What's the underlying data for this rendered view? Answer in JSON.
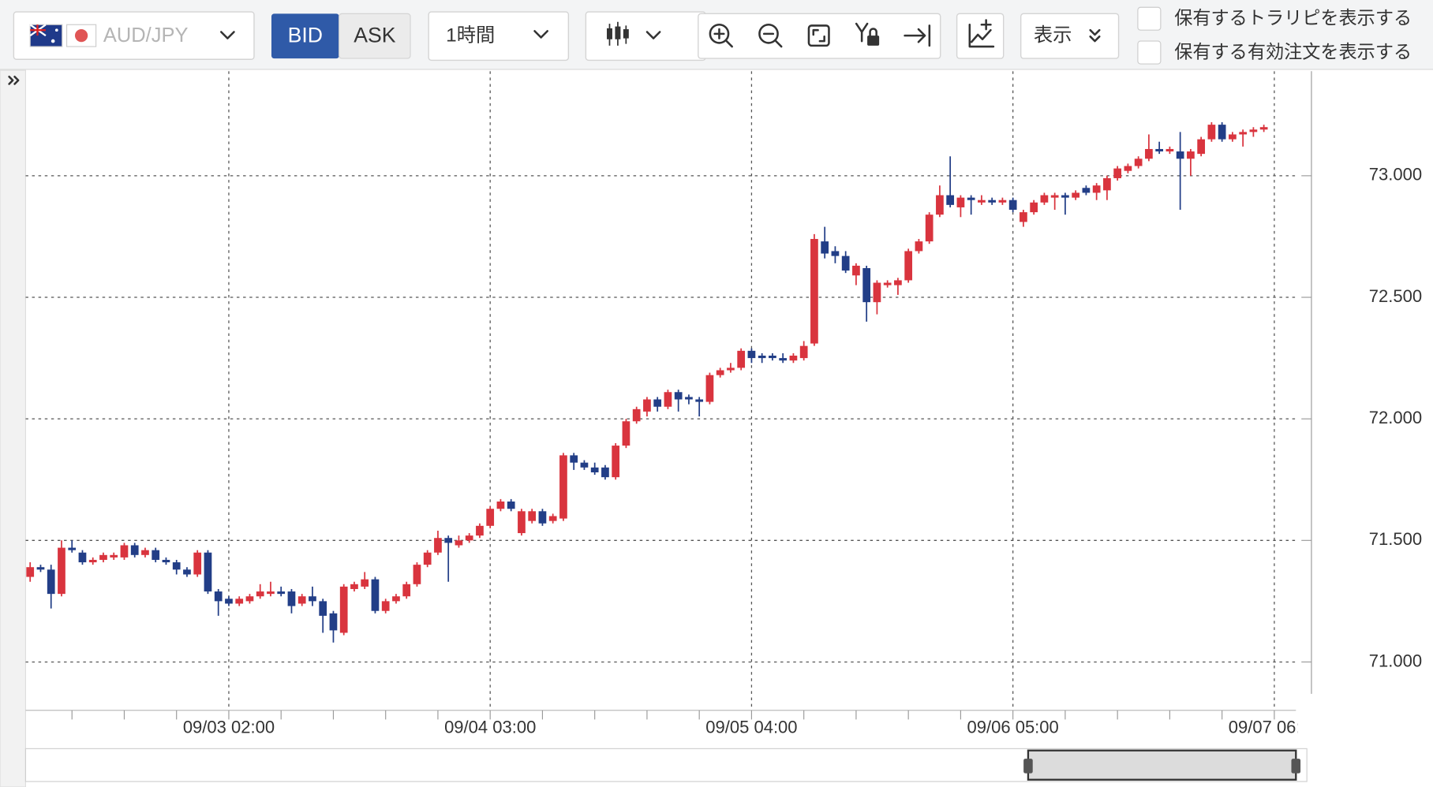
{
  "toolbar": {
    "pair": "AUD/JPY",
    "price_buttons": [
      "BID",
      "ASK"
    ],
    "interval": "1時間",
    "display": "表示",
    "checkboxes": [
      "保有するトラリピを表示する",
      "保有する有効注文を表示する"
    ]
  },
  "chart_data": {
    "type": "candlestick",
    "categories": [
      null,
      null,
      null,
      null,
      null,
      null,
      null,
      null,
      null,
      null,
      null,
      null,
      null,
      null,
      null,
      null,
      null,
      null,
      null,
      "09/03 02:00",
      null,
      null,
      null,
      null,
      null,
      null,
      null,
      null,
      null,
      null,
      null,
      null,
      null,
      null,
      null,
      null,
      null,
      null,
      null,
      null,
      null,
      null,
      null,
      null,
      "09/04 03:00",
      null,
      null,
      null,
      null,
      null,
      null,
      null,
      null,
      null,
      null,
      null,
      null,
      null,
      null,
      null,
      null,
      null,
      null,
      null,
      null,
      null,
      null,
      null,
      null,
      "09/05 04:00",
      null,
      null,
      null,
      null,
      null,
      null,
      null,
      null,
      null,
      null,
      null,
      null,
      null,
      null,
      null,
      null,
      null,
      null,
      null,
      null,
      null,
      null,
      null,
      null,
      "09/06 05:00",
      null,
      null,
      null,
      null,
      null,
      null,
      null,
      null,
      null,
      null,
      null,
      null,
      null,
      null,
      null,
      null,
      null,
      null,
      null,
      null,
      null,
      null,
      null,
      null,
      "09/07 06:00"
    ],
    "open": [
      71.35,
      71.39,
      71.38,
      71.28,
      71.47,
      71.45,
      71.41,
      71.42,
      71.43,
      71.43,
      71.48,
      71.44,
      71.46,
      71.42,
      71.41,
      71.38,
      71.36,
      71.45,
      71.29,
      71.26,
      71.24,
      71.25,
      71.27,
      71.28,
      71.29,
      71.29,
      71.24,
      71.27,
      71.25,
      71.2,
      71.12,
      71.3,
      71.31,
      71.34,
      71.21,
      71.25,
      71.27,
      71.32,
      71.4,
      71.45,
      71.51,
      71.48,
      71.5,
      71.52,
      71.56,
      71.63,
      71.66,
      71.53,
      71.58,
      71.62,
      71.58,
      71.59,
      71.85,
      71.82,
      71.8,
      71.8,
      71.76,
      71.89,
      71.99,
      72.03,
      72.08,
      72.05,
      72.11,
      72.09,
      72.08,
      72.07,
      72.18,
      72.2,
      72.21,
      72.28,
      72.26,
      72.26,
      72.25,
      72.24,
      72.25,
      72.31,
      72.73,
      72.69,
      72.67,
      72.59,
      72.62,
      72.48,
      72.55,
      72.55,
      72.57,
      72.69,
      72.73,
      72.84,
      72.92,
      72.87,
      72.91,
      72.89,
      72.9,
      72.89,
      72.9,
      72.81,
      72.85,
      72.89,
      72.91,
      72.92,
      72.91,
      72.95,
      72.93,
      72.94,
      72.99,
      73.02,
      73.04,
      73.07,
      73.11,
      73.1,
      73.1,
      73.07,
      73.09,
      73.15,
      73.21,
      73.15,
      73.17,
      73.18,
      73.19,
      null
    ],
    "high": [
      71.41,
      71.4,
      71.4,
      71.5,
      71.5,
      71.46,
      71.43,
      71.45,
      71.45,
      71.49,
      71.49,
      71.47,
      71.47,
      71.43,
      71.42,
      71.39,
      71.46,
      71.46,
      71.3,
      71.27,
      71.27,
      71.28,
      71.32,
      71.33,
      71.31,
      71.3,
      71.28,
      71.31,
      71.26,
      71.21,
      71.32,
      71.33,
      71.37,
      71.35,
      71.26,
      71.28,
      71.33,
      71.41,
      71.46,
      71.54,
      71.52,
      71.52,
      71.53,
      71.57,
      71.64,
      71.67,
      71.67,
      71.63,
      71.63,
      71.63,
      71.61,
      71.86,
      71.86,
      71.83,
      71.82,
      71.81,
      71.9,
      72.0,
      72.05,
      72.09,
      72.09,
      72.12,
      72.12,
      72.1,
      72.09,
      72.19,
      72.21,
      72.23,
      72.29,
      72.29,
      72.27,
      72.27,
      72.27,
      72.27,
      72.32,
      72.76,
      72.79,
      72.71,
      72.69,
      72.64,
      72.63,
      72.57,
      72.57,
      72.58,
      72.7,
      72.74,
      72.85,
      72.96,
      73.08,
      72.92,
      72.92,
      72.92,
      72.91,
      72.91,
      72.91,
      72.86,
      72.9,
      72.93,
      72.93,
      72.93,
      72.94,
      72.96,
      72.97,
      73.0,
      73.04,
      73.05,
      73.08,
      73.17,
      73.14,
      73.12,
      73.18,
      73.11,
      73.16,
      73.22,
      73.22,
      73.18,
      73.19,
      73.2,
      73.21,
      null
    ],
    "low": [
      71.33,
      71.37,
      71.22,
      71.27,
      71.45,
      71.4,
      71.4,
      71.41,
      71.42,
      71.42,
      71.43,
      71.43,
      71.41,
      71.4,
      71.36,
      71.35,
      71.35,
      71.28,
      71.19,
      71.23,
      71.23,
      71.24,
      71.26,
      71.27,
      71.27,
      71.2,
      71.23,
      71.23,
      71.12,
      71.08,
      71.11,
      71.29,
      71.3,
      71.2,
      71.2,
      71.24,
      71.26,
      71.31,
      71.39,
      71.44,
      71.33,
      71.47,
      71.49,
      71.51,
      71.55,
      71.62,
      71.62,
      71.52,
      71.57,
      71.56,
      71.57,
      71.58,
      71.79,
      71.79,
      71.77,
      71.75,
      71.75,
      71.88,
      71.98,
      72.01,
      72.03,
      72.04,
      72.03,
      72.06,
      72.01,
      72.06,
      72.17,
      72.19,
      72.2,
      72.23,
      72.23,
      72.24,
      72.23,
      72.23,
      72.24,
      72.3,
      72.66,
      72.64,
      72.6,
      72.55,
      72.4,
      72.43,
      72.54,
      72.51,
      72.56,
      72.68,
      72.72,
      72.83,
      72.87,
      72.83,
      72.84,
      72.88,
      72.88,
      72.88,
      72.85,
      72.79,
      72.84,
      72.88,
      72.86,
      72.84,
      72.9,
      72.92,
      72.9,
      72.9,
      72.98,
      73.01,
      73.03,
      73.06,
      73.09,
      73.09,
      72.86,
      73.0,
      73.08,
      73.14,
      73.14,
      73.14,
      73.12,
      73.16,
      73.18,
      null
    ],
    "close": [
      71.39,
      71.38,
      71.28,
      71.47,
      71.46,
      71.41,
      71.42,
      71.44,
      71.44,
      71.48,
      71.44,
      71.46,
      71.42,
      71.41,
      71.38,
      71.36,
      71.45,
      71.29,
      71.25,
      71.24,
      71.26,
      71.27,
      71.29,
      71.29,
      71.28,
      71.23,
      71.27,
      71.25,
      71.19,
      71.13,
      71.31,
      71.32,
      71.34,
      71.21,
      71.25,
      71.27,
      71.32,
      71.4,
      71.45,
      71.51,
      71.49,
      71.5,
      71.52,
      71.56,
      71.63,
      71.66,
      71.63,
      71.62,
      71.62,
      71.57,
      71.6,
      71.85,
      71.82,
      71.8,
      71.78,
      71.76,
      71.89,
      71.99,
      72.04,
      72.08,
      72.05,
      72.11,
      72.08,
      72.08,
      72.07,
      72.18,
      72.2,
      72.21,
      72.28,
      72.25,
      72.25,
      72.25,
      72.24,
      72.26,
      72.3,
      72.74,
      72.68,
      72.67,
      72.61,
      72.63,
      72.48,
      72.56,
      72.56,
      72.57,
      72.69,
      72.73,
      72.84,
      72.92,
      72.88,
      72.91,
      72.9,
      72.9,
      72.89,
      72.9,
      72.86,
      72.85,
      72.89,
      72.92,
      72.92,
      72.91,
      72.93,
      72.93,
      72.96,
      72.99,
      73.03,
      73.04,
      73.07,
      73.11,
      73.1,
      73.11,
      73.07,
      73.1,
      73.15,
      73.21,
      73.15,
      73.17,
      73.18,
      73.19,
      73.2,
      null
    ],
    "up_color": "#d9343e",
    "down_color": "#223e87",
    "ylim": [
      70.85,
      73.43
    ],
    "yticks": [
      {
        "value": 71,
        "label": "71.000"
      },
      {
        "value": 71.5,
        "label": "71.500"
      },
      {
        "value": 72,
        "label": "72.000"
      },
      {
        "value": 72.5,
        "label": "72.500"
      },
      {
        "value": 73,
        "label": "73.000"
      }
    ],
    "grid": true
  }
}
